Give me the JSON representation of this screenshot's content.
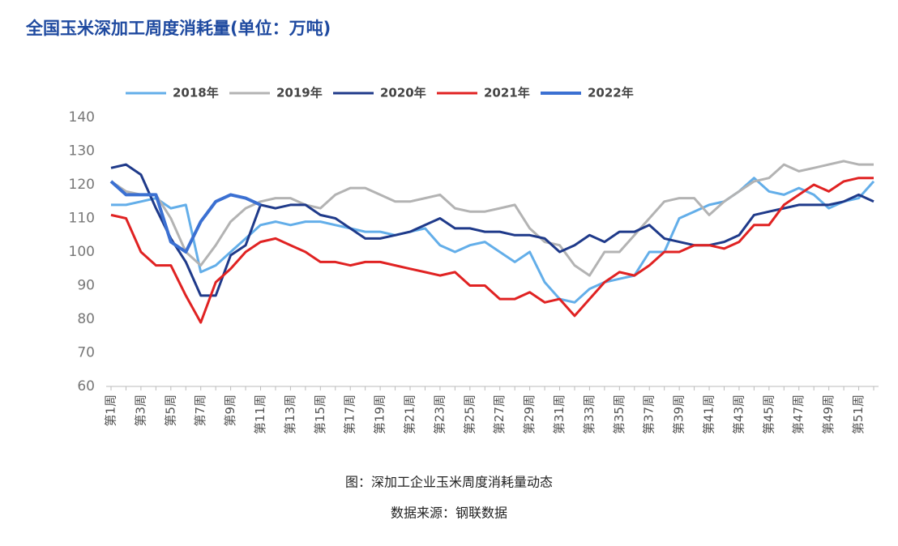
{
  "chart_data": {
    "type": "line",
    "title": "全国玉米深加工周度消耗量(单位：万吨)",
    "caption": "图：深加工企业玉米周度消耗量动态",
    "source": "数据来源：钢联数据",
    "categories": [
      "第1周",
      null,
      "第3周",
      null,
      "第5周",
      null,
      "第7周",
      null,
      "第9周",
      null,
      "第11周",
      null,
      "第13周",
      null,
      "第15周",
      null,
      "第17周",
      null,
      "第19周",
      null,
      "第21周",
      null,
      "第23周",
      null,
      "第25周",
      null,
      "第27周",
      null,
      "第29周",
      null,
      "第31周",
      null,
      "第33周",
      null,
      "第35周",
      null,
      "第37周",
      null,
      "第39周",
      null,
      "第41周",
      null,
      "第43周",
      null,
      "第45周",
      null,
      "第47周",
      null,
      "第49周",
      null,
      "第51周",
      null
    ],
    "ylim": [
      60,
      140
    ],
    "yticks": [
      60,
      70,
      80,
      90,
      100,
      110,
      120,
      130,
      140
    ],
    "legend": "top",
    "series": [
      {
        "name": "2018年",
        "color": "#63aee9",
        "values": [
          114,
          114,
          115,
          116,
          113,
          114,
          94,
          96,
          100,
          104,
          108,
          109,
          108,
          109,
          109,
          108,
          107,
          106,
          106,
          105,
          106,
          107,
          102,
          100,
          102,
          103,
          100,
          97,
          100,
          91,
          86,
          85,
          89,
          91,
          92,
          93,
          100,
          100,
          110,
          112,
          114,
          115,
          118,
          122,
          118,
          117,
          119,
          117,
          113,
          115,
          116,
          121
        ]
      },
      {
        "name": "2019年",
        "color": "#b3b3b3",
        "values": [
          121,
          118,
          117,
          117,
          110,
          100,
          96,
          102,
          109,
          113,
          115,
          116,
          116,
          114,
          113,
          117,
          119,
          119,
          117,
          115,
          115,
          116,
          117,
          113,
          112,
          112,
          113,
          114,
          107,
          103,
          102,
          96,
          93,
          100,
          100,
          105,
          110,
          115,
          116,
          116,
          111,
          115,
          118,
          121,
          122,
          126,
          124,
          125,
          126,
          127,
          126,
          126
        ]
      },
      {
        "name": "2020年",
        "color": "#1f3a8a",
        "values": [
          125,
          126,
          123,
          113,
          104,
          97,
          87,
          87,
          99,
          102,
          114,
          113,
          114,
          114,
          111,
          110,
          107,
          104,
          104,
          105,
          106,
          108,
          110,
          107,
          107,
          106,
          106,
          105,
          105,
          104,
          100,
          102,
          105,
          103,
          106,
          106,
          108,
          104,
          103,
          102,
          102,
          103,
          105,
          111,
          112,
          113,
          114,
          114,
          114,
          115,
          117,
          115
        ]
      },
      {
        "name": "2021年",
        "color": "#e02222",
        "values": [
          111,
          110,
          100,
          96,
          96,
          87,
          79,
          91,
          95,
          100,
          103,
          104,
          102,
          100,
          97,
          97,
          96,
          97,
          97,
          96,
          95,
          94,
          93,
          94,
          90,
          90,
          86,
          86,
          88,
          85,
          86,
          81,
          86,
          91,
          94,
          93,
          96,
          100,
          100,
          102,
          102,
          101,
          103,
          108,
          108,
          114,
          117,
          120,
          118,
          121,
          122,
          122
        ]
      },
      {
        "name": "2022年",
        "color": "#3b70d2",
        "values": [
          121,
          117,
          117,
          117,
          103,
          100,
          109,
          115,
          117,
          116,
          114,
          null,
          null,
          null,
          null,
          null,
          null,
          null,
          null,
          null,
          null,
          null,
          null,
          null,
          null,
          null,
          null,
          null,
          null,
          null,
          null,
          null,
          null,
          null,
          null,
          null,
          null,
          null,
          null,
          null,
          null,
          null,
          null,
          null,
          null,
          null,
          null,
          null,
          null,
          null,
          null,
          null
        ]
      }
    ]
  }
}
